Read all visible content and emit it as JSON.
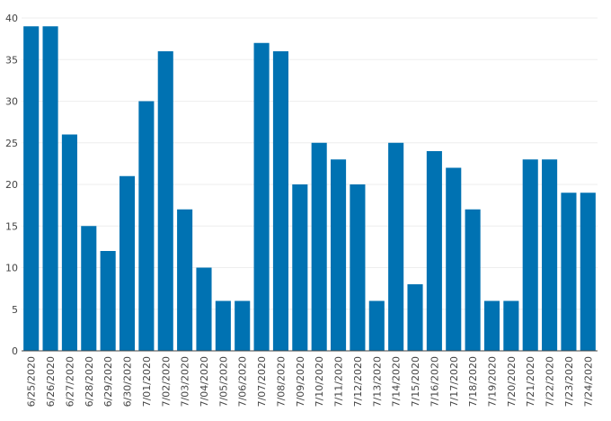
{
  "chart_data": {
    "type": "bar",
    "title": "",
    "xlabel": "",
    "ylabel": "",
    "ylim": [
      0,
      40
    ],
    "yticks": [
      0,
      5,
      10,
      15,
      20,
      25,
      30,
      35,
      40
    ],
    "grid": true,
    "legend": "none",
    "bar_color": "#0072b2",
    "categories": [
      "6/25/2020",
      "6/26/2020",
      "6/27/2020",
      "6/28/2020",
      "6/29/2020",
      "6/30/2020",
      "7/01/2020",
      "7/02/2020",
      "7/03/2020",
      "7/04/2020",
      "7/05/2020",
      "7/06/2020",
      "7/07/2020",
      "7/08/2020",
      "7/09/2020",
      "7/10/2020",
      "7/11/2020",
      "7/12/2020",
      "7/13/2020",
      "7/14/2020",
      "7/15/2020",
      "7/16/2020",
      "7/17/2020",
      "7/18/2020",
      "7/19/2020",
      "7/20/2020",
      "7/21/2020",
      "7/22/2020",
      "7/23/2020",
      "7/24/2020"
    ],
    "values": [
      39,
      39,
      26,
      15,
      12,
      21,
      30,
      36,
      17,
      10,
      6,
      6,
      37,
      36,
      20,
      25,
      23,
      20,
      6,
      25,
      8,
      24,
      22,
      17,
      6,
      6,
      23,
      23,
      19,
      19
    ]
  }
}
